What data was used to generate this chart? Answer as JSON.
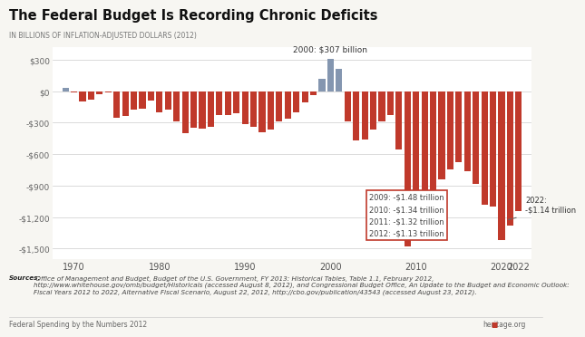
{
  "title": "The Federal Budget Is Recording Chronic Deficits",
  "ylabel": "IN BILLIONS OF INFLATION-ADJUSTED DOLLARS (2012)",
  "years": [
    1969,
    1970,
    1971,
    1972,
    1973,
    1974,
    1975,
    1976,
    1977,
    1978,
    1979,
    1980,
    1981,
    1982,
    1983,
    1984,
    1985,
    1986,
    1987,
    1988,
    1989,
    1990,
    1991,
    1992,
    1993,
    1994,
    1995,
    1996,
    1997,
    1998,
    1999,
    2000,
    2001,
    2002,
    2003,
    2004,
    2005,
    2006,
    2007,
    2008,
    2009,
    2010,
    2011,
    2012,
    2013,
    2014,
    2015,
    2016,
    2017,
    2018,
    2019,
    2020,
    2021,
    2022
  ],
  "values": [
    27,
    -10,
    -95,
    -80,
    -30,
    -15,
    -250,
    -240,
    -180,
    -170,
    -90,
    -200,
    -180,
    -290,
    -400,
    -350,
    -360,
    -340,
    -230,
    -230,
    -210,
    -310,
    -340,
    -390,
    -370,
    -290,
    -260,
    -200,
    -110,
    -40,
    120,
    307,
    210,
    -290,
    -470,
    -460,
    -370,
    -290,
    -230,
    -560,
    -1480,
    -1340,
    -1320,
    -1130,
    -840,
    -750,
    -680,
    -760,
    -880,
    -1080,
    -1100,
    -1420,
    -1280,
    -1140
  ],
  "bar_color_positive": "#8496b0",
  "bar_color_negative": "#c0392b",
  "annotation_2000": "2000: $307 billion",
  "annotation_box_lines": [
    "2009: -$1.48 trillion",
    "2010: -$1.34 trillion",
    "2011: -$1.32 trillion",
    "2012: -$1.13 trillion"
  ],
  "annotation_2022": "2022:\n-$1.14 trillion",
  "ylim": [
    -1600,
    420
  ],
  "yticks": [
    300,
    0,
    -300,
    -600,
    -900,
    -1200,
    -1500
  ],
  "ytick_labels": [
    "$300",
    "$0",
    "-$300",
    "-$600",
    "-$900",
    "-$1,200",
    "-$1,500"
  ],
  "xtick_years": [
    1970,
    1980,
    1990,
    2000,
    2010,
    2020,
    2022
  ],
  "sources_bold": "Sources:",
  "sources_text": " Office of Management and Budget, Budget of the U.S. Government, FY 2013: Historical Tables, Table 1.1, February 2012,\nhttp://www.whitehouse.gov/omb/budget/Historicals (accessed August 8, 2012), and Congressional Budget Office, An Update to the Budget and Economic Outlook:\nFiscal Years 2012 to 2022, Alternative Fiscal Scenario, August 22, 2012, http://cbo.gov/publication/43543 (accessed August 23, 2012).",
  "footer_text": "Federal Spending by the Numbers 2012",
  "bg_color": "#f7f6f2",
  "white_plot_bg": "#ffffff"
}
